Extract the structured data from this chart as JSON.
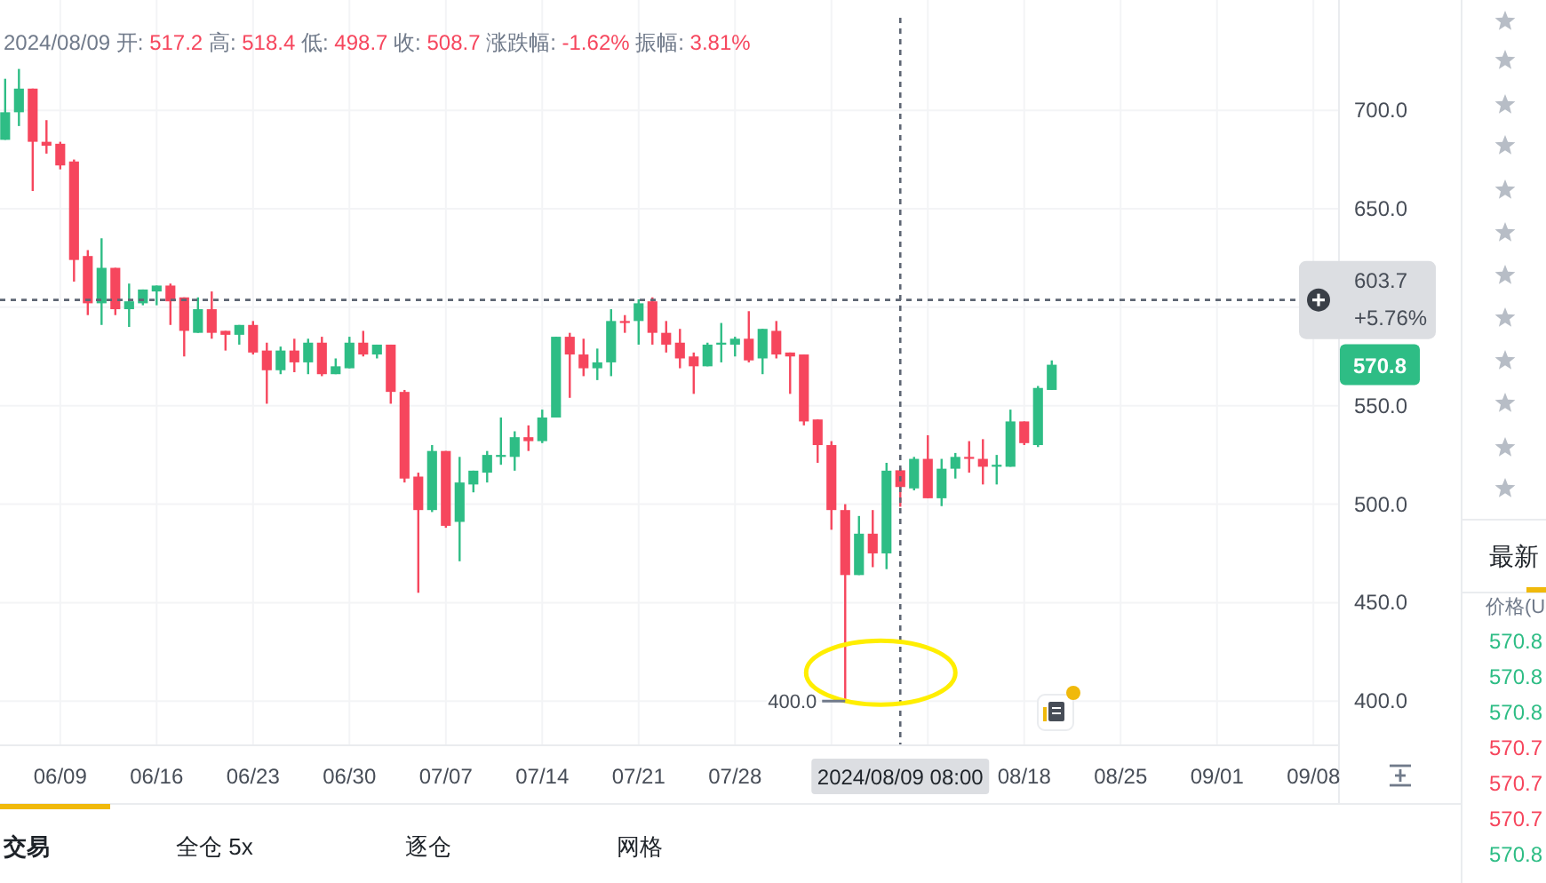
{
  "chart_data": {
    "type": "candlestick",
    "title": "2024/08/09 开: 517.2 高: 518.4 低: 498.7 收: 508.7 涨跌幅: -1.62% 振幅: 3.81%",
    "x": [
      "2024-06-05",
      "2024-06-06",
      "2024-06-07",
      "2024-06-08",
      "2024-06-09",
      "2024-06-10",
      "2024-06-11",
      "2024-06-12",
      "2024-06-13",
      "2024-06-14",
      "2024-06-15",
      "2024-06-16",
      "2024-06-17",
      "2024-06-18",
      "2024-06-19",
      "2024-06-20",
      "2024-06-21",
      "2024-06-22",
      "2024-06-23",
      "2024-06-24",
      "2024-06-25",
      "2024-06-26",
      "2024-06-27",
      "2024-06-28",
      "2024-06-29",
      "2024-06-30",
      "2024-07-01",
      "2024-07-02",
      "2024-07-03",
      "2024-07-04",
      "2024-07-05",
      "2024-07-06",
      "2024-07-07",
      "2024-07-08",
      "2024-07-09",
      "2024-07-10",
      "2024-07-11",
      "2024-07-12",
      "2024-07-13",
      "2024-07-14",
      "2024-07-15",
      "2024-07-16",
      "2024-07-17",
      "2024-07-18",
      "2024-07-19",
      "2024-07-20",
      "2024-07-21",
      "2024-07-22",
      "2024-07-23",
      "2024-07-24",
      "2024-07-25",
      "2024-07-26",
      "2024-07-27",
      "2024-07-28",
      "2024-07-29",
      "2024-07-30",
      "2024-07-31",
      "2024-08-01",
      "2024-08-02",
      "2024-08-03",
      "2024-08-04",
      "2024-08-05",
      "2024-08-06",
      "2024-08-07",
      "2024-08-08",
      "2024-08-09",
      "2024-08-10",
      "2024-08-11",
      "2024-08-12",
      "2024-08-13",
      "2024-08-14",
      "2024-08-15",
      "2024-08-16",
      "2024-08-17",
      "2024-08-18",
      "2024-08-19",
      "2024-08-20"
    ],
    "ohlc": [
      [
        685,
        716,
        685,
        699
      ],
      [
        699,
        721,
        692,
        711
      ],
      [
        711,
        711,
        659,
        684
      ],
      [
        684,
        695,
        678,
        682
      ],
      [
        683,
        684,
        670,
        672
      ],
      [
        674,
        675,
        613,
        624
      ],
      [
        626,
        629,
        596,
        602
      ],
      [
        602,
        635,
        591,
        620
      ],
      [
        620,
        620,
        596,
        599
      ],
      [
        599,
        612,
        590,
        603
      ],
      [
        602,
        609,
        601,
        609
      ],
      [
        608,
        611,
        601,
        611
      ],
      [
        611,
        612,
        591,
        603
      ],
      [
        605,
        605,
        575,
        588
      ],
      [
        587,
        605,
        587,
        599
      ],
      [
        599,
        608,
        584,
        587
      ],
      [
        588,
        588,
        578,
        586
      ],
      [
        586,
        591,
        581,
        591
      ],
      [
        591,
        593,
        576,
        577
      ],
      [
        578,
        582,
        551,
        568
      ],
      [
        568,
        580,
        566,
        578
      ],
      [
        578,
        584,
        567,
        572
      ],
      [
        572,
        584,
        566,
        582
      ],
      [
        582,
        585,
        565,
        566
      ],
      [
        566,
        574,
        566,
        570
      ],
      [
        569,
        585,
        569,
        582
      ],
      [
        582,
        588,
        575,
        576
      ],
      [
        576,
        581,
        574,
        581
      ],
      [
        581,
        581,
        551,
        557
      ],
      [
        557,
        558,
        511,
        513
      ],
      [
        514,
        516,
        455,
        497
      ],
      [
        497,
        530,
        496,
        527
      ],
      [
        527,
        527,
        488,
        489
      ],
      [
        491,
        524,
        471,
        511
      ],
      [
        510,
        517,
        506,
        517
      ],
      [
        516,
        527,
        511,
        525
      ],
      [
        524,
        544,
        520,
        525
      ],
      [
        524,
        537,
        517,
        534
      ],
      [
        534,
        540,
        527,
        532
      ],
      [
        532,
        548,
        531,
        544
      ],
      [
        544,
        585,
        544,
        585
      ],
      [
        585,
        587,
        554,
        576
      ],
      [
        576,
        584,
        565,
        569
      ],
      [
        569,
        579,
        563,
        572
      ],
      [
        572,
        599,
        565,
        593
      ],
      [
        593,
        596,
        587,
        592
      ],
      [
        593,
        604,
        581,
        602
      ],
      [
        603,
        605,
        581,
        587
      ],
      [
        587,
        593,
        577,
        581
      ],
      [
        582,
        589,
        569,
        574
      ],
      [
        575,
        577,
        556,
        570
      ],
      [
        570,
        582,
        570,
        581
      ],
      [
        581,
        592,
        572,
        582
      ],
      [
        581,
        585,
        575,
        584
      ],
      [
        584,
        598,
        572,
        573
      ],
      [
        574,
        589,
        566,
        589
      ],
      [
        588,
        593,
        574,
        576
      ],
      [
        577,
        577,
        556,
        575
      ],
      [
        576,
        576,
        540,
        542
      ],
      [
        543,
        543,
        521,
        530
      ],
      [
        530,
        532,
        487,
        497
      ],
      [
        497,
        500,
        400,
        464
      ],
      [
        464,
        494,
        464,
        485
      ],
      [
        485,
        497,
        468,
        475
      ],
      [
        475,
        521,
        467,
        517
      ],
      [
        517.2,
        518.4,
        498.7,
        508.7
      ],
      [
        508,
        524,
        507,
        523
      ],
      [
        523,
        535,
        503,
        503
      ],
      [
        503,
        523,
        499,
        518
      ],
      [
        518,
        526,
        513,
        524
      ],
      [
        524,
        532,
        516,
        523
      ],
      [
        523,
        533,
        510,
        519
      ],
      [
        519,
        525,
        510,
        520
      ],
      [
        519,
        548,
        519,
        542
      ],
      [
        542,
        542,
        530,
        531
      ],
      [
        530,
        560,
        529,
        559
      ],
      [
        558,
        573,
        558,
        570.8
      ]
    ],
    "colors": [
      "#2ebd85",
      "#2ebd85",
      "#f6465d",
      "#f6465d",
      "#f6465d",
      "#f6465d",
      "#f6465d",
      "#2ebd85",
      "#f6465d",
      "#2ebd85",
      "#2ebd85",
      "#2ebd85",
      "#f6465d",
      "#f6465d",
      "#2ebd85",
      "#f6465d",
      "#f6465d",
      "#2ebd85",
      "#f6465d",
      "#f6465d",
      "#2ebd85",
      "#f6465d",
      "#2ebd85",
      "#f6465d",
      "#2ebd85",
      "#2ebd85",
      "#f6465d",
      "#2ebd85",
      "#f6465d",
      "#f6465d",
      "#f6465d",
      "#2ebd85",
      "#f6465d",
      "#2ebd85",
      "#2ebd85",
      "#2ebd85",
      "#2ebd85",
      "#2ebd85",
      "#f6465d",
      "#2ebd85",
      "#2ebd85",
      "#f6465d",
      "#f6465d",
      "#2ebd85",
      "#2ebd85",
      "#f6465d",
      "#2ebd85",
      "#f6465d",
      "#f6465d",
      "#f6465d",
      "#f6465d",
      "#2ebd85",
      "#2ebd85",
      "#2ebd85",
      "#f6465d",
      "#2ebd85",
      "#f6465d",
      "#f6465d",
      "#f6465d",
      "#f6465d",
      "#f6465d",
      "#f6465d",
      "#2ebd85",
      "#f6465d",
      "#2ebd85",
      "#f6465d",
      "#2ebd85",
      "#f6465d",
      "#2ebd85",
      "#2ebd85",
      "#f6465d",
      "#f6465d",
      "#2ebd85",
      "#2ebd85",
      "#f6465d",
      "#2ebd85",
      "#2ebd85"
    ],
    "xlim": [
      "2024-06-04T15:00",
      "2024-09-09T19:00"
    ],
    "xticks": [
      {
        "value": "2024-06-09",
        "label": "06/09"
      },
      {
        "value": "2024-06-16",
        "label": "06/16"
      },
      {
        "value": "2024-06-23",
        "label": "06/23"
      },
      {
        "value": "2024-06-30",
        "label": "06/30"
      },
      {
        "value": "2024-07-07",
        "label": "07/07"
      },
      {
        "value": "2024-07-14",
        "label": "07/14"
      },
      {
        "value": "2024-07-21",
        "label": "07/21"
      },
      {
        "value": "2024-07-28",
        "label": "07/28"
      },
      {
        "value": "2024-08-04",
        "label": null
      },
      {
        "value": "2024-08-11",
        "label": null
      },
      {
        "value": "2024-08-18",
        "label": "08/18"
      },
      {
        "value": "2024-08-25",
        "label": "08/25"
      },
      {
        "value": "2024-09-01",
        "label": "09/01"
      },
      {
        "value": "2024-09-08",
        "label": "09/08"
      }
    ],
    "ylim": [
      378,
      756
    ],
    "yticks": [
      {
        "value": 400,
        "label": "400.0"
      },
      {
        "value": 450,
        "label": "450.0"
      },
      {
        "value": 500,
        "label": "500.0"
      },
      {
        "value": 550,
        "label": "550.0"
      },
      {
        "value": 600,
        "label": null
      },
      {
        "value": 650,
        "label": "650.0"
      },
      {
        "value": 700,
        "label": "700.0"
      }
    ],
    "grid": true,
    "ref_lines": [
      {
        "axis": "x",
        "value": "2024-08-09",
        "label": "2024/08/09 08:00",
        "line_style": "dashed"
      },
      {
        "axis": "y",
        "value": 603.7,
        "label": "603.7 +5.76%",
        "line_style": "dashed"
      }
    ],
    "annotations": [
      {
        "text": "400.0",
        "x": "2024-08-05",
        "y": 400
      },
      "570.8",
      "交易",
      "全仓 5x",
      "逐仓",
      "网格",
      "最新",
      "价格(U",
      "570.8",
      "570.8",
      "570.8",
      "570.7",
      "570.7",
      "570.7",
      "570.8"
    ]
  }
}
